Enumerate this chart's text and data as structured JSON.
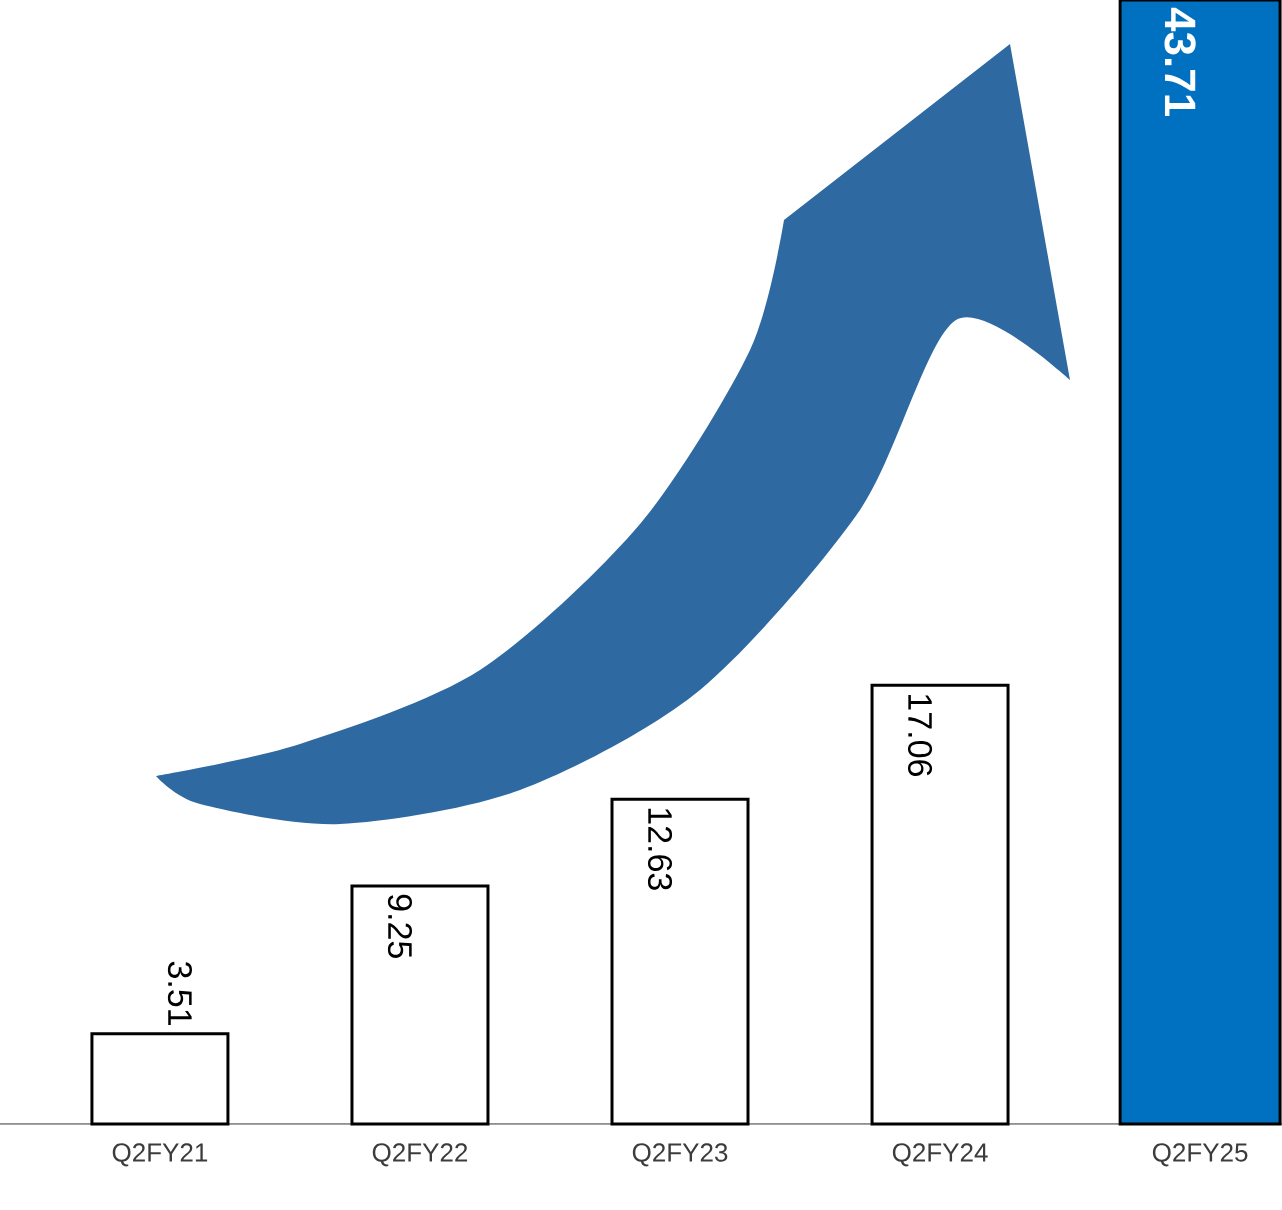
{
  "chart_data": {
    "type": "bar",
    "categories": [
      "Q2FY21",
      "Q2FY22",
      "Q2FY23",
      "Q2FY24",
      "Q2FY25"
    ],
    "values": [
      3.51,
      9.25,
      12.63,
      17.06,
      43.71
    ],
    "colors": [
      "#ffffff",
      "#ffffff",
      "#ffffff",
      "#ffffff",
      "#0070c0"
    ],
    "data_labels": true
  }
}
